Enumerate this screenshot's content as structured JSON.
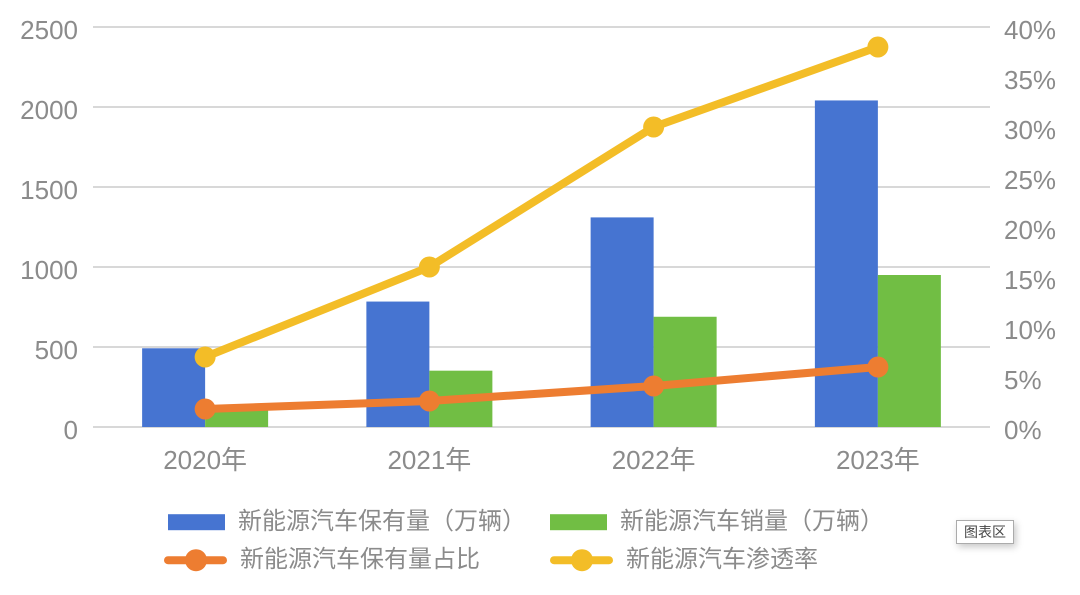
{
  "chart_data": {
    "type": "combo",
    "title": "",
    "categories": [
      "2020年",
      "2021年",
      "2022年",
      "2023年"
    ],
    "series": [
      {
        "name": "新能源汽车保有量（万辆）",
        "type": "bar",
        "axis": "left",
        "color": "#4674d1",
        "values": [
          492,
          784,
          1310,
          2041
        ]
      },
      {
        "name": "新能源汽车销量（万辆）",
        "type": "bar",
        "axis": "left",
        "color": "#71be44",
        "values": [
          137,
          352,
          689,
          950
        ]
      },
      {
        "name": "新能源汽车保有量占比",
        "type": "line",
        "axis": "right",
        "color": "#ed7d31",
        "values": [
          1.8,
          2.6,
          4.1,
          6.0
        ]
      },
      {
        "name": "新能源汽车渗透率",
        "type": "line",
        "axis": "right",
        "color": "#f3bd27",
        "values": [
          7,
          16,
          30,
          38
        ]
      }
    ],
    "left_axis": {
      "min": 0,
      "max": 2500,
      "step": 500,
      "tick_labels": [
        "0",
        "500",
        "1000",
        "1500",
        "2000",
        "2500"
      ]
    },
    "right_axis": {
      "min": 0,
      "max": 40,
      "step": 5,
      "tick_labels": [
        "0%",
        "5%",
        "10%",
        "15%",
        "20%",
        "25%",
        "30%",
        "35%",
        "40%"
      ]
    },
    "grid": true,
    "legend_position": "bottom"
  },
  "overlay": {
    "chart_area_tooltip": "图表区"
  },
  "colors": {
    "gridline": "#d8d8d8",
    "axis_text": "#8b8b8b",
    "background": "#ffffff"
  }
}
